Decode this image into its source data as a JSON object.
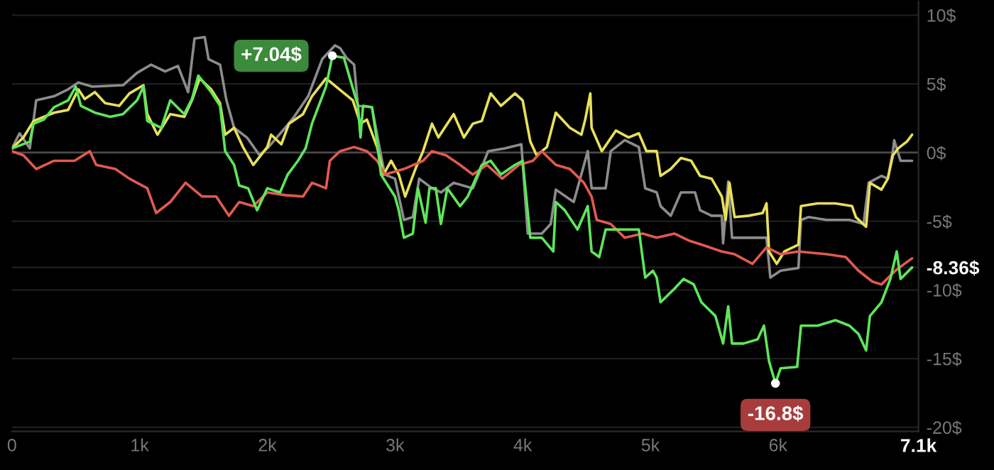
{
  "chart_data": {
    "type": "line",
    "xlim": [
      0,
      7100
    ],
    "xticks": [
      {
        "value": 0,
        "label": "0"
      },
      {
        "value": 1000,
        "label": "1k"
      },
      {
        "value": 2000,
        "label": "2k"
      },
      {
        "value": 3000,
        "label": "3k"
      },
      {
        "value": 4000,
        "label": "4k"
      },
      {
        "value": 5000,
        "label": "5k"
      },
      {
        "value": 6000,
        "label": "6k"
      },
      {
        "value": 7100,
        "label": "7.1k"
      }
    ],
    "ylim": [
      -20.3,
      11
    ],
    "yticks": [
      {
        "value": 10,
        "label": "10$"
      },
      {
        "value": 5,
        "label": "5$"
      },
      {
        "value": 0,
        "label": "0$"
      },
      {
        "value": -5,
        "label": "-5$"
      },
      {
        "value": -10,
        "label": "-10$"
      },
      {
        "value": -15,
        "label": "-15$"
      },
      {
        "value": -20,
        "label": "-20$"
      },
      {
        "value": -8.36,
        "label": "-8.36$"
      }
    ],
    "grid": "y",
    "ref_lines": [
      {
        "axis": "y",
        "value": 0,
        "color": "#4a4a4a"
      }
    ],
    "series": [
      {
        "color": "#8c8c8c",
        "x": [
          0,
          60,
          140,
          190,
          330,
          440,
          520,
          630,
          870,
          980,
          1090,
          1200,
          1300,
          1380,
          1430,
          1510,
          1540,
          1630,
          1680,
          1740,
          1840,
          1940,
          2010,
          2140,
          2210,
          2320,
          2430,
          2530,
          2570,
          2620,
          2680,
          2710,
          2820,
          2870,
          2920,
          3000,
          3070,
          3140,
          3190,
          3290,
          3360,
          3460,
          3610,
          3700,
          3730,
          3860,
          3990,
          4040,
          4150,
          4220,
          4260,
          4400,
          4510,
          4540,
          4650,
          4690,
          4800,
          4910,
          4960,
          5050,
          5080,
          5160,
          5240,
          5350,
          5390,
          5480,
          5560,
          5570,
          5610,
          5640,
          5770,
          5910,
          5940,
          6020,
          6160,
          6180,
          6240,
          6380,
          6560,
          6670,
          6710,
          6810,
          6860,
          6900,
          6910,
          6960,
          7050
        ],
        "values": [
          0.3,
          1.4,
          0.3,
          3.8,
          4.1,
          4.6,
          5.1,
          4.8,
          4.9,
          5.8,
          6.4,
          5.9,
          6.3,
          4.4,
          8.3,
          8.4,
          6.8,
          6.4,
          3.8,
          1.8,
          1.1,
          -0.2,
          0.4,
          1.8,
          2.6,
          4.1,
          6.8,
          7.8,
          7.6,
          6.9,
          6.4,
          3.4,
          3.3,
          0.8,
          -1.6,
          -1.9,
          -4.9,
          -4.7,
          -1.9,
          -2.6,
          -2.9,
          -2.2,
          -2.6,
          -0.6,
          0.1,
          0.3,
          0.6,
          -5.9,
          -5.9,
          -5.2,
          -2.7,
          -3.6,
          0.1,
          -2.6,
          -2.6,
          0.1,
          0.9,
          0.4,
          -2.6,
          -2.9,
          -3.9,
          -4.6,
          -2.9,
          -2.9,
          -4.2,
          -4.6,
          -4.6,
          -6.6,
          -2.1,
          -6.2,
          -6.2,
          -6.2,
          -9.1,
          -8.6,
          -8.4,
          -4.9,
          -4.7,
          -4.9,
          -4.9,
          -5.2,
          -2.2,
          -1.7,
          -1.9,
          0.1,
          0.9,
          -0.6,
          -0.6
        ]
      },
      {
        "color": "#e8e05a",
        "x": [
          0,
          90,
          170,
          330,
          440,
          520,
          570,
          650,
          730,
          840,
          920,
          1030,
          1060,
          1140,
          1240,
          1350,
          1410,
          1470,
          1560,
          1630,
          1670,
          1740,
          1810,
          1890,
          2000,
          2030,
          2110,
          2170,
          2280,
          2350,
          2460,
          2670,
          2730,
          2780,
          2860,
          2910,
          2970,
          3030,
          3080,
          3160,
          3220,
          3290,
          3340,
          3410,
          3460,
          3540,
          3610,
          3680,
          3750,
          3830,
          3940,
          4000,
          4060,
          4110,
          4190,
          4260,
          4370,
          4460,
          4490,
          4530,
          4540,
          4620,
          4730,
          4830,
          4910,
          4970,
          5050,
          5080,
          5160,
          5240,
          5320,
          5390,
          5480,
          5560,
          5590,
          5620,
          5660,
          5770,
          5880,
          5910,
          5930,
          5990,
          6050,
          6160,
          6180,
          6310,
          6450,
          6580,
          6610,
          6690,
          6720,
          6810,
          6860,
          6900,
          6940,
          7010,
          7050
        ],
        "values": [
          0.3,
          1.1,
          2.3,
          2.9,
          3.1,
          4.6,
          3.9,
          4.4,
          3.6,
          3.4,
          4.3,
          4.9,
          2.8,
          1.3,
          2.8,
          2.6,
          3.8,
          5.4,
          4.6,
          3.6,
          1.3,
          1.8,
          0.4,
          -0.9,
          0.4,
          1.3,
          0.6,
          2.1,
          2.8,
          4.1,
          5.4,
          3.8,
          2.1,
          2.4,
          0.4,
          -1.6,
          -0.6,
          -1.6,
          -3.2,
          -1.2,
          0.1,
          2.1,
          1.1,
          2.1,
          2.8,
          1.1,
          2.1,
          2.3,
          4.3,
          3.4,
          4.3,
          3.8,
          0.8,
          -0.2,
          0.4,
          2.9,
          1.8,
          1.3,
          2.4,
          4.3,
          1.8,
          0.1,
          1.6,
          1.1,
          1.4,
          0.1,
          0.1,
          -1.7,
          -1.2,
          -0.4,
          -0.6,
          -1.7,
          -1.9,
          -3.2,
          -4.9,
          -2.2,
          -4.7,
          -4.6,
          -4.4,
          -3.7,
          -7.2,
          -8.1,
          -7.2,
          -6.7,
          -3.9,
          -3.7,
          -3.7,
          -3.9,
          -4.7,
          -5.4,
          -2.2,
          -2.7,
          -1.9,
          -0.2,
          0.3,
          0.8,
          1.3
        ]
      },
      {
        "color": "#e05a50",
        "x": [
          0,
          90,
          190,
          330,
          490,
          610,
          660,
          810,
          920,
          1060,
          1130,
          1240,
          1360,
          1490,
          1600,
          1700,
          1780,
          1890,
          2000,
          2140,
          2280,
          2350,
          2460,
          2490,
          2570,
          2680,
          2780,
          2860,
          2920,
          3070,
          3220,
          3290,
          3400,
          3510,
          3610,
          3720,
          3840,
          3970,
          4080,
          4150,
          4260,
          4370,
          4480,
          4540,
          4580,
          4690,
          4800,
          4940,
          5050,
          5190,
          5300,
          5400,
          5560,
          5660,
          5800,
          5910,
          6020,
          6160,
          6380,
          6530,
          6630,
          6740,
          6810,
          6920,
          6990,
          7050
        ],
        "values": [
          0.1,
          -0.2,
          -1.2,
          -0.6,
          -0.6,
          0.1,
          -0.9,
          -1.2,
          -1.9,
          -2.6,
          -4.4,
          -3.6,
          -2.2,
          -3.2,
          -3.2,
          -4.6,
          -3.6,
          -3.9,
          -2.9,
          -3.1,
          -3.2,
          -2.2,
          -2.6,
          -0.6,
          0.1,
          0.4,
          0.1,
          -0.6,
          -1.6,
          -1.2,
          -0.6,
          0.1,
          -0.2,
          -0.9,
          -1.6,
          -0.9,
          -1.9,
          -0.9,
          -0.6,
          0.1,
          -0.9,
          -1.2,
          -2.2,
          -3.2,
          -4.9,
          -5.2,
          -6.2,
          -5.9,
          -6.2,
          -5.9,
          -6.4,
          -6.7,
          -7.2,
          -7.4,
          -8.1,
          -6.9,
          -7.4,
          -7.2,
          -7.4,
          -7.6,
          -8.6,
          -9.4,
          -9.6,
          -8.6,
          -8.1,
          -7.7
        ]
      },
      {
        "color": "#5ee65a",
        "x": [
          0,
          30,
          140,
          170,
          250,
          330,
          440,
          500,
          540,
          650,
          770,
          870,
          980,
          1030,
          1060,
          1170,
          1240,
          1350,
          1410,
          1460,
          1560,
          1630,
          1670,
          1740,
          1780,
          1850,
          1920,
          2000,
          2100,
          2160,
          2240,
          2300,
          2350,
          2460,
          2510,
          2600,
          2710,
          2730,
          2750,
          2820,
          2860,
          2890,
          3000,
          3030,
          3070,
          3140,
          3180,
          3240,
          3270,
          3320,
          3360,
          3410,
          3510,
          3570,
          3680,
          3750,
          3830,
          3940,
          4000,
          4060,
          4150,
          4240,
          4260,
          4330,
          4430,
          4510,
          4540,
          4600,
          4650,
          4760,
          4910,
          4960,
          5020,
          5050,
          5080,
          5190,
          5260,
          5340,
          5400,
          5510,
          5570,
          5610,
          5640,
          5730,
          5840,
          5890,
          5930,
          5980,
          6020,
          6150,
          6180,
          6310,
          6450,
          6560,
          6630,
          6690,
          6720,
          6810,
          6880,
          6930,
          6960,
          7050
        ],
        "values": [
          0.3,
          0.4,
          0.8,
          2.1,
          2.4,
          3.3,
          3.8,
          4.8,
          3.4,
          2.9,
          2.6,
          2.8,
          3.8,
          4.8,
          2.3,
          1.8,
          3.8,
          2.8,
          3.9,
          5.6,
          4.4,
          3.4,
          0.1,
          -0.9,
          -2.4,
          -2.6,
          -4.2,
          -2.6,
          -2.9,
          -1.6,
          -0.6,
          0.3,
          2.1,
          4.8,
          7.04,
          6.9,
          3.4,
          1.1,
          3.4,
          3.3,
          0.8,
          -1.6,
          -3.2,
          -4.2,
          -6.2,
          -5.9,
          -2.6,
          -5.1,
          -2.6,
          -2.6,
          -5.2,
          -2.6,
          -3.9,
          -3.2,
          -0.9,
          -0.6,
          -1.6,
          -0.9,
          -0.6,
          -6.2,
          -6.2,
          -7.2,
          -3.6,
          -4.2,
          -5.6,
          -3.9,
          -7.2,
          -7.6,
          -5.6,
          -5.6,
          -5.6,
          -9.1,
          -8.6,
          -9.1,
          -10.9,
          -9.9,
          -9.2,
          -9.6,
          -10.9,
          -11.9,
          -13.9,
          -11.2,
          -13.9,
          -13.9,
          -13.6,
          -12.6,
          -15.2,
          -16.8,
          -15.7,
          -15.6,
          -12.6,
          -12.6,
          -12.2,
          -12.6,
          -13.2,
          -14.4,
          -11.9,
          -10.9,
          -9.2,
          -7.2,
          -9.2,
          -8.36
        ]
      }
    ],
    "annotations": [
      {
        "text": "+7.04$",
        "x": 2510,
        "y": 7.04
      },
      {
        "text": "-16.8$",
        "x": 5980,
        "y": -16.8
      }
    ]
  }
}
